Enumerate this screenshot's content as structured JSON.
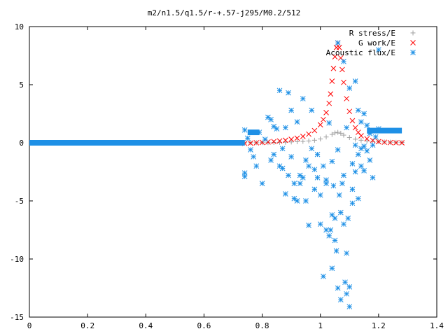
{
  "chart_data": {
    "type": "scatter",
    "title": "m2/n1.5/q1.5/r-+.57-j295/M0.2/512",
    "xlabel": "",
    "ylabel": "",
    "xlim": [
      0,
      1.4
    ],
    "ylim": [
      -15,
      10
    ],
    "x_ticks": [
      "0",
      "0.2",
      "0.4",
      "0.6",
      "0.8",
      "1",
      "1.2",
      "1.4"
    ],
    "y_ticks": [
      "10",
      "5",
      "0",
      "-5",
      "-10",
      "-15"
    ],
    "grid": false,
    "legend_position": "top-right",
    "series": [
      {
        "name": "R stress/E",
        "marker": "plus",
        "color": "#a0a0a0",
        "points": [
          [
            0.74,
            0.0
          ],
          [
            0.76,
            0.01
          ],
          [
            0.78,
            0.01
          ],
          [
            0.8,
            0.02
          ],
          [
            0.82,
            0.02
          ],
          [
            0.84,
            0.03
          ],
          [
            0.86,
            0.04
          ],
          [
            0.88,
            0.05
          ],
          [
            0.9,
            0.07
          ],
          [
            0.92,
            0.09
          ],
          [
            0.94,
            0.12
          ],
          [
            0.96,
            0.16
          ],
          [
            0.98,
            0.22
          ],
          [
            1.0,
            0.33
          ],
          [
            1.02,
            0.5
          ],
          [
            1.04,
            0.72
          ],
          [
            1.05,
            0.85
          ],
          [
            1.06,
            0.9
          ],
          [
            1.07,
            0.82
          ],
          [
            1.08,
            0.66
          ],
          [
            1.1,
            0.45
          ],
          [
            1.12,
            0.31
          ],
          [
            1.14,
            0.22
          ],
          [
            1.16,
            0.16
          ],
          [
            1.18,
            0.12
          ],
          [
            1.2,
            0.09
          ],
          [
            1.22,
            0.07
          ],
          [
            1.24,
            0.05
          ],
          [
            1.26,
            0.04
          ],
          [
            1.28,
            0.03
          ]
        ]
      },
      {
        "name": "G work/E",
        "marker": "cross",
        "color": "#ff0000",
        "points": [
          [
            0.74,
            -0.05
          ],
          [
            0.76,
            -0.03
          ],
          [
            0.78,
            0.0
          ],
          [
            0.8,
            0.03
          ],
          [
            0.82,
            0.07
          ],
          [
            0.84,
            0.11
          ],
          [
            0.86,
            0.16
          ],
          [
            0.88,
            0.22
          ],
          [
            0.9,
            0.3
          ],
          [
            0.92,
            0.4
          ],
          [
            0.94,
            0.55
          ],
          [
            0.96,
            0.75
          ],
          [
            0.98,
            1.05
          ],
          [
            1.0,
            1.55
          ],
          [
            1.01,
            2.0
          ],
          [
            1.02,
            2.6
          ],
          [
            1.03,
            3.4
          ],
          [
            1.035,
            4.2
          ],
          [
            1.04,
            5.3
          ],
          [
            1.045,
            6.4
          ],
          [
            1.05,
            7.4
          ],
          [
            1.055,
            8.2
          ],
          [
            1.06,
            8.6
          ],
          [
            1.065,
            8.2
          ],
          [
            1.07,
            7.3
          ],
          [
            1.075,
            6.3
          ],
          [
            1.08,
            5.2
          ],
          [
            1.09,
            3.8
          ],
          [
            1.1,
            2.7
          ],
          [
            1.11,
            1.9
          ],
          [
            1.12,
            1.3
          ],
          [
            1.13,
            0.9
          ],
          [
            1.14,
            0.6
          ],
          [
            1.16,
            0.35
          ],
          [
            1.18,
            0.2
          ],
          [
            1.2,
            0.1
          ],
          [
            1.22,
            0.05
          ],
          [
            1.24,
            0.02
          ],
          [
            1.26,
            0.01
          ],
          [
            1.28,
            0.0
          ]
        ]
      },
      {
        "name": "Acoustic flux/E",
        "marker": "star",
        "color": "#1e90e6",
        "line_segments": [
          {
            "x": [
              0.0,
              0.74
            ],
            "y": 0.0
          },
          {
            "x": [
              0.75,
              0.79
            ],
            "y": 0.9
          },
          {
            "x": [
              1.16,
              1.28
            ],
            "y": 1.05
          }
        ],
        "points": [
          [
            0.74,
            1.1
          ],
          [
            0.74,
            -2.6
          ],
          [
            0.74,
            -2.9
          ],
          [
            0.75,
            0.4
          ],
          [
            0.76,
            -0.6
          ],
          [
            0.77,
            -1.2
          ],
          [
            0.78,
            -2.0
          ],
          [
            0.79,
            0.9
          ],
          [
            0.8,
            -3.5
          ],
          [
            0.81,
            0.3
          ],
          [
            0.82,
            2.2
          ],
          [
            0.83,
            2.0
          ],
          [
            0.83,
            -1.5
          ],
          [
            0.84,
            1.4
          ],
          [
            0.84,
            -1.0
          ],
          [
            0.85,
            1.2
          ],
          [
            0.86,
            4.5
          ],
          [
            0.86,
            -2.0
          ],
          [
            0.87,
            -0.5
          ],
          [
            0.87,
            -2.2
          ],
          [
            0.88,
            1.3
          ],
          [
            0.88,
            -4.4
          ],
          [
            0.89,
            4.3
          ],
          [
            0.89,
            -2.8
          ],
          [
            0.9,
            2.8
          ],
          [
            0.9,
            -1.2
          ],
          [
            0.91,
            -3.5
          ],
          [
            0.91,
            -4.8
          ],
          [
            0.92,
            -5.0
          ],
          [
            0.92,
            1.8
          ],
          [
            0.93,
            -2.8
          ],
          [
            0.93,
            -3.5
          ],
          [
            0.94,
            3.8
          ],
          [
            0.94,
            -3.0
          ],
          [
            0.95,
            -1.5
          ],
          [
            0.95,
            -5.0
          ],
          [
            0.96,
            -2.0
          ],
          [
            0.96,
            -7.1
          ],
          [
            0.97,
            2.8
          ],
          [
            0.97,
            -0.5
          ],
          [
            0.98,
            -2.3
          ],
          [
            0.98,
            -4.0
          ],
          [
            0.99,
            -1.0
          ],
          [
            0.99,
            -3.0
          ],
          [
            1.0,
            -4.5
          ],
          [
            1.0,
            -7.0
          ],
          [
            1.01,
            -2.0
          ],
          [
            1.01,
            -11.5
          ],
          [
            1.02,
            -3.2
          ],
          [
            1.02,
            -7.5
          ],
          [
            1.03,
            1.7
          ],
          [
            1.03,
            -8.0
          ],
          [
            1.035,
            -7.5
          ],
          [
            1.04,
            -6.2
          ],
          [
            1.04,
            -10.8
          ],
          [
            1.045,
            -3.7
          ],
          [
            1.05,
            -6.5
          ],
          [
            1.05,
            -8.4
          ],
          [
            1.055,
            -9.3
          ],
          [
            1.06,
            8.6
          ],
          [
            1.06,
            -12.5
          ],
          [
            1.065,
            -4.5
          ],
          [
            1.07,
            -6.0
          ],
          [
            1.07,
            -13.5
          ],
          [
            1.075,
            -3.5
          ],
          [
            1.08,
            -2.8
          ],
          [
            1.08,
            -7.0
          ],
          [
            1.085,
            -12.0
          ],
          [
            1.09,
            -9.5
          ],
          [
            1.09,
            -13.0
          ],
          [
            1.095,
            -6.5
          ],
          [
            1.1,
            -14.1
          ],
          [
            1.1,
            -12.4
          ],
          [
            1.11,
            -4.0
          ],
          [
            1.11,
            -1.8
          ],
          [
            1.12,
            -2.5
          ],
          [
            1.12,
            -0.2
          ],
          [
            1.13,
            2.8
          ],
          [
            1.13,
            -1.0
          ],
          [
            1.14,
            1.8
          ],
          [
            1.14,
            -0.5
          ],
          [
            1.15,
            2.5
          ],
          [
            1.15,
            -0.3
          ],
          [
            1.16,
            1.5
          ],
          [
            1.16,
            -0.7
          ],
          [
            1.17,
            0.8
          ],
          [
            1.18,
            -0.2
          ],
          [
            1.18,
            -3.0
          ],
          [
            1.19,
            0.5
          ],
          [
            1.2,
            1.2
          ],
          [
            1.2,
            8.0
          ],
          [
            1.1,
            4.7
          ],
          [
            1.08,
            7.0
          ],
          [
            1.12,
            5.3
          ],
          [
            1.09,
            1.3
          ],
          [
            1.04,
            -1.6
          ],
          [
            1.06,
            -0.6
          ],
          [
            1.02,
            -3.5
          ],
          [
            1.11,
            -5.2
          ],
          [
            1.13,
            -4.8
          ],
          [
            1.15,
            -2.4
          ],
          [
            1.14,
            -2.0
          ],
          [
            1.17,
            -1.5
          ]
        ]
      }
    ]
  }
}
